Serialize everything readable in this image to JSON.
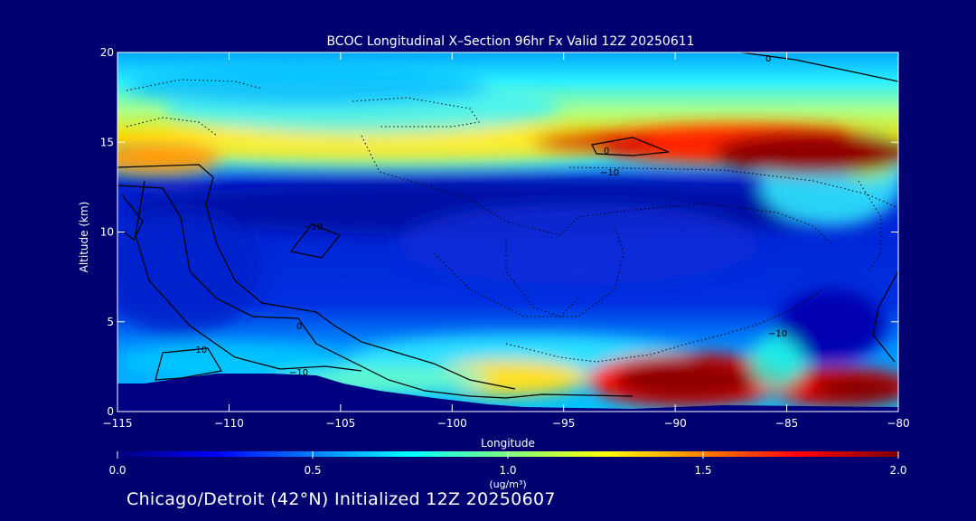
{
  "chart_data": {
    "type": "heatmap",
    "title": "BCOC Longitudinal X–Section 96hr  Fx Valid 12Z 20250611",
    "xlabel": "Longitude",
    "ylabel": "Altitude (km)",
    "xlim": [
      -115,
      -80
    ],
    "ylim": [
      0,
      20
    ],
    "x_ticks": [
      -115,
      -110,
      -105,
      -100,
      -95,
      -90,
      -85,
      -80
    ],
    "x_tick_labels": [
      "−115",
      "−110",
      "−105",
      "−100",
      "−95",
      "−90",
      "−85",
      "−80"
    ],
    "y_ticks": [
      0,
      5,
      10,
      15,
      20
    ],
    "y_tick_labels": [
      "0",
      "5",
      "10",
      "15",
      "20"
    ],
    "colorbar": {
      "min": 0.0,
      "max": 2.0,
      "ticks": [
        0.0,
        0.5,
        1.0,
        1.5,
        2.0
      ],
      "tick_labels": [
        "0.0",
        "0.5",
        "1.0",
        "1.5",
        "2.0"
      ],
      "units_label": "(ug/m³)",
      "colormap": [
        "#00007f",
        "#0000ff",
        "#007fff",
        "#00ffff",
        "#7fff7f",
        "#ffff00",
        "#ff7f00",
        "#ff0000",
        "#7f0000"
      ]
    },
    "contour_labels": [
      "0",
      "−10",
      "0",
      "−10",
      "−10",
      "−10",
      "−10",
      "0"
    ],
    "terrain_color": "#000080"
  },
  "footer": "Chicago/Detroit (42°N) Initialized 12Z 20250607"
}
